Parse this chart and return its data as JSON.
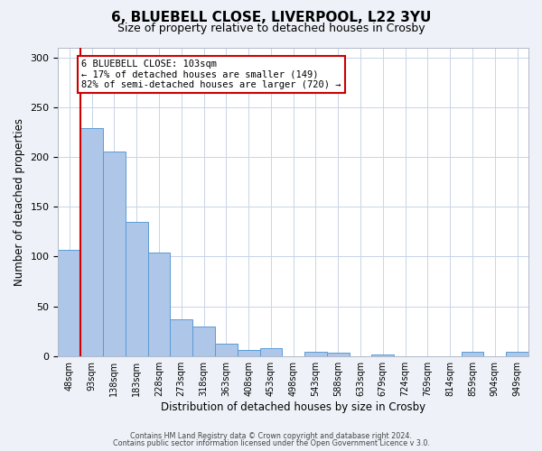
{
  "title_line1": "6, BLUEBELL CLOSE, LIVERPOOL, L22 3YU",
  "title_line2": "Size of property relative to detached houses in Crosby",
  "xlabel": "Distribution of detached houses by size in Crosby",
  "ylabel": "Number of detached properties",
  "bar_labels": [
    "48sqm",
    "93sqm",
    "138sqm",
    "183sqm",
    "228sqm",
    "273sqm",
    "318sqm",
    "363sqm",
    "408sqm",
    "453sqm",
    "498sqm",
    "543sqm",
    "588sqm",
    "633sqm",
    "679sqm",
    "724sqm",
    "769sqm",
    "814sqm",
    "859sqm",
    "904sqm",
    "949sqm"
  ],
  "bar_values": [
    107,
    229,
    205,
    135,
    104,
    37,
    30,
    12,
    6,
    8,
    0,
    4,
    3,
    0,
    2,
    0,
    0,
    0,
    4,
    0,
    4
  ],
  "bar_color": "#aec6e8",
  "bar_edge_color": "#5b9bd5",
  "bar_width": 1.0,
  "vline_x": 1.0,
  "vline_color": "#cc0000",
  "ylim": [
    0,
    310
  ],
  "yticks": [
    0,
    50,
    100,
    150,
    200,
    250,
    300
  ],
  "annotation_title": "6 BLUEBELL CLOSE: 103sqm",
  "annotation_line1": "← 17% of detached houses are smaller (149)",
  "annotation_line2": "82% of semi-detached houses are larger (720) →",
  "annotation_box_color": "#ffffff",
  "annotation_box_edge": "#cc0000",
  "footer_line1": "Contains HM Land Registry data © Crown copyright and database right 2024.",
  "footer_line2": "Contains public sector information licensed under the Open Government Licence v 3.0.",
  "bg_color": "#eef2f8",
  "plot_bg_color": "#ffffff",
  "grid_color": "#c8d4e8",
  "title_fontsize": 11,
  "subtitle_fontsize": 9
}
